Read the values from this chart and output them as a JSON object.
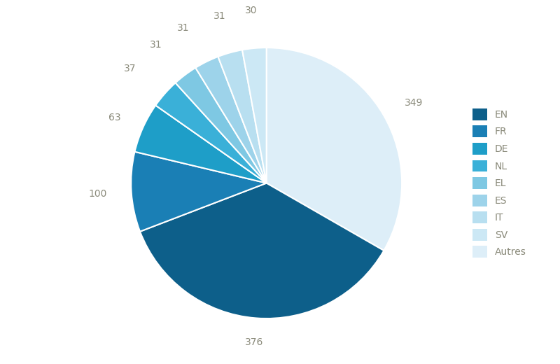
{
  "labels": [
    "Autres",
    "EN",
    "FR",
    "DE",
    "NL",
    "EL",
    "ES",
    "IT",
    "SV"
  ],
  "values": [
    349,
    376,
    100,
    63,
    37,
    31,
    31,
    31,
    30
  ],
  "colors": [
    "#ddeef8",
    "#0d5f8a",
    "#1a7fb5",
    "#1e9ec8",
    "#3ab0d8",
    "#7ec8e3",
    "#9dd3ea",
    "#b8dff0",
    "#cce8f5"
  ],
  "startangle": 90,
  "background_color": "#ffffff",
  "text_color": "#8a8a7a",
  "legend_labels": [
    "EN",
    "FR",
    "DE",
    "NL",
    "EL",
    "ES",
    "IT",
    "SV",
    "Autres"
  ],
  "legend_colors": [
    "#0d5f8a",
    "#1a7fb5",
    "#1e9ec8",
    "#3ab0d8",
    "#7ec8e3",
    "#9dd3ea",
    "#b8dff0",
    "#cce8f5",
    "#ddeef8"
  ],
  "legend_fontsize": 10,
  "value_fontsize": 10
}
